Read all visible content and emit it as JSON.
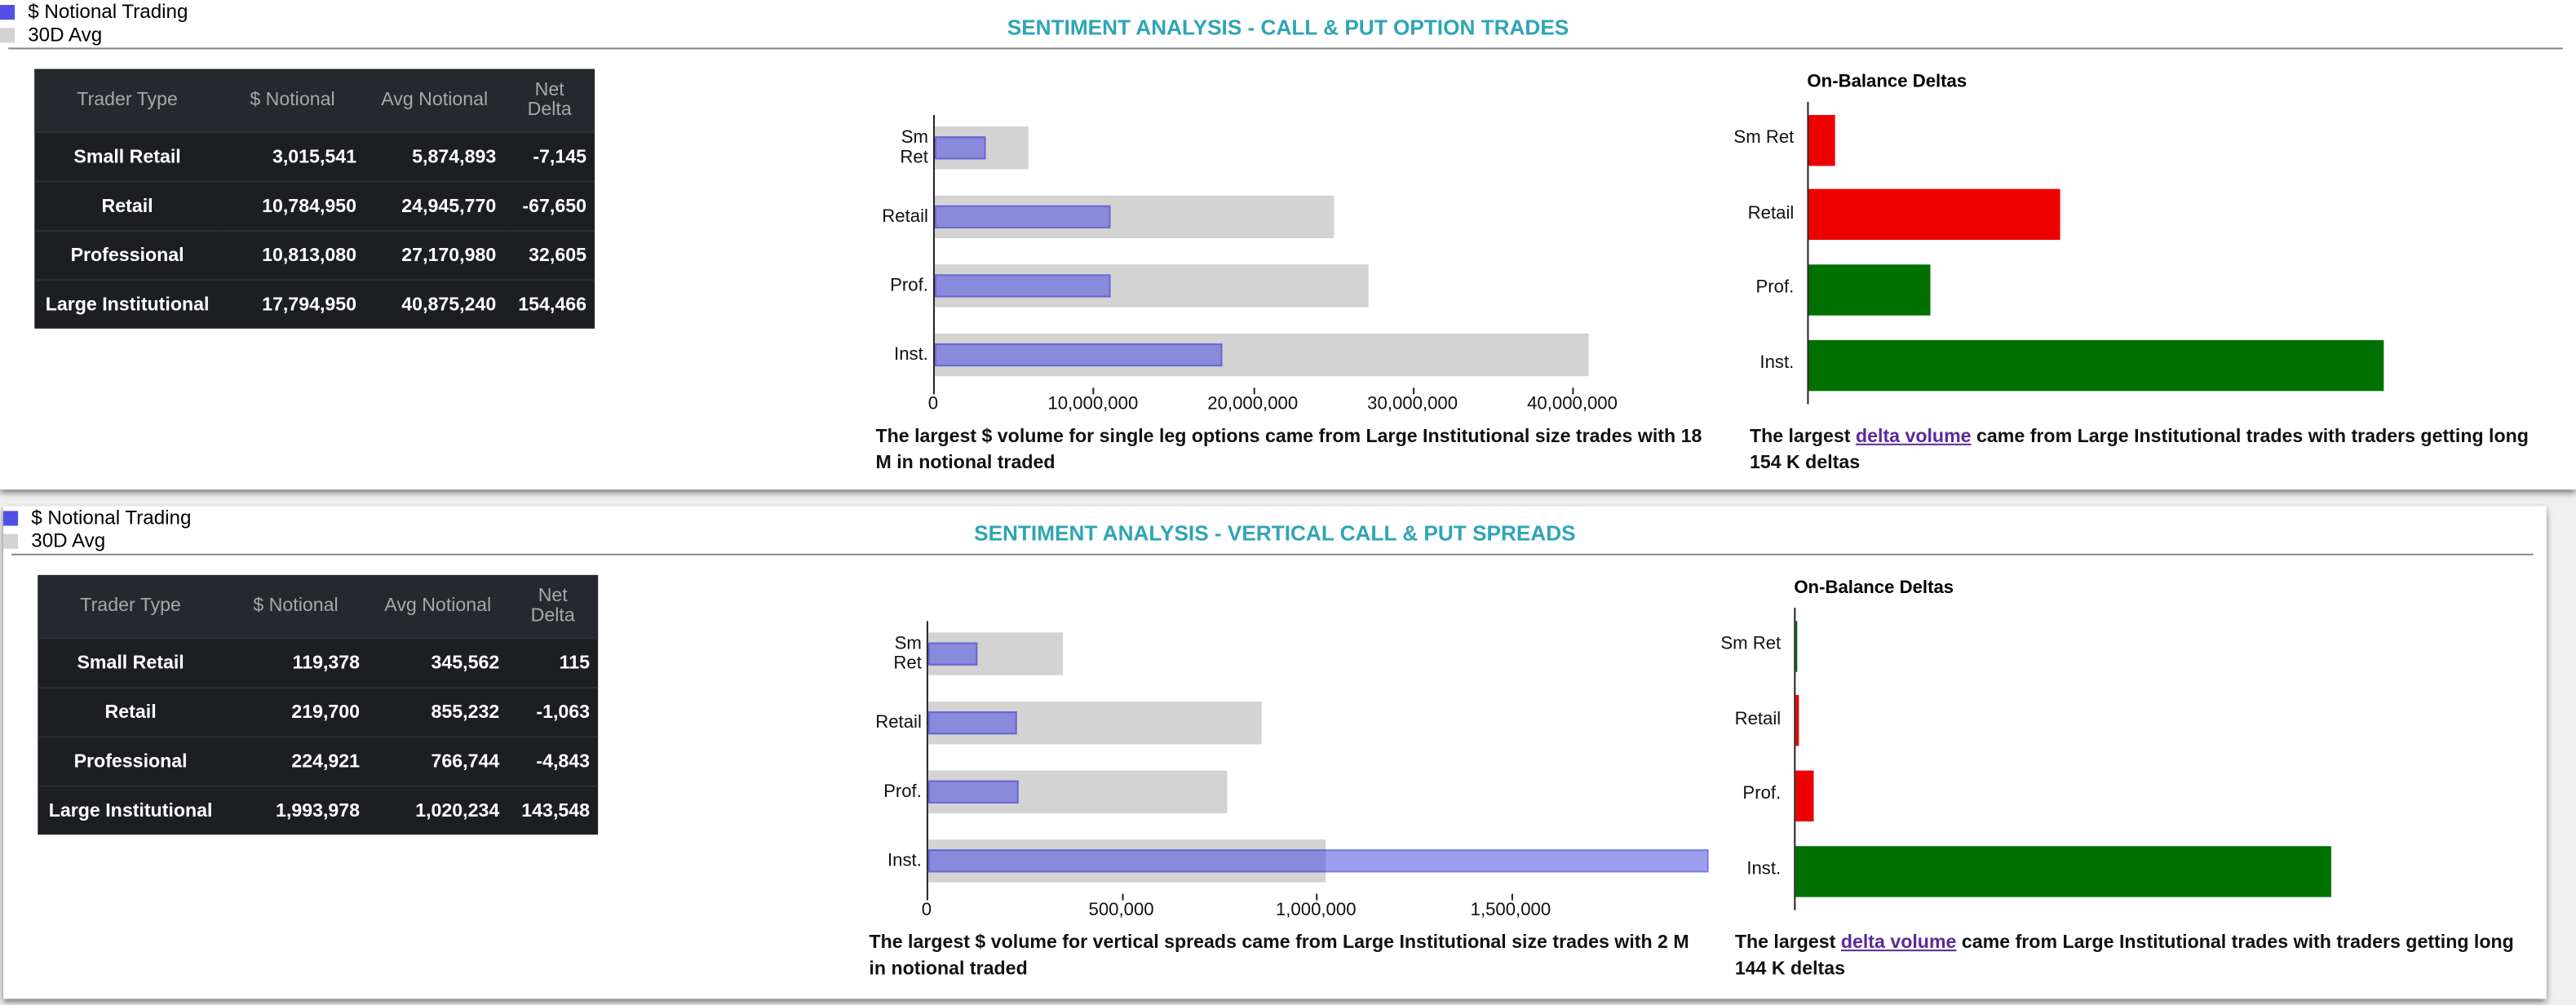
{
  "panels": [
    {
      "title": "SENTIMENT ANALYSIS - CALL & PUT OPTION TRADES",
      "table": {
        "headers": [
          "Trader Type",
          "$ Notional",
          "Avg Notional",
          "Net Delta"
        ],
        "rows": [
          [
            "Small Retail",
            "3,015,541",
            "5,874,893",
            "-7,145"
          ],
          [
            "Retail",
            "10,784,950",
            "24,945,770",
            "-67,650"
          ],
          [
            "Professional",
            "10,813,080",
            "27,170,980",
            "32,605"
          ],
          [
            "Large Institutional",
            "17,794,950",
            "40,875,240",
            "154,466"
          ]
        ]
      },
      "chart_data": [
        {
          "type": "hbar",
          "categories": [
            "Sm Ret",
            "Retail",
            "Prof.",
            "Inst."
          ],
          "series": [
            {
              "name": "$ Notional Trading",
              "color": "#5050e6",
              "values": [
                3015541,
                10784950,
                10813080,
                17794950
              ]
            },
            {
              "name": "30D Avg",
              "color": "#d3d3d3",
              "values": [
                5874893,
                24945770,
                27170980,
                40875240
              ]
            }
          ],
          "xlim": [
            0,
            42000000
          ],
          "xticks": [
            0,
            {
              "value": 10000000,
              "label": "10,000,000"
            },
            {
              "value": 20000000,
              "label": "20,000,000"
            },
            {
              "value": 30000000,
              "label": "30,000,000"
            },
            {
              "value": 40000000,
              "label": "40,000,000"
            }
          ],
          "caption": "The largest $ volume for single leg options came from Large Institutional size trades with 18 M in notional traded"
        },
        {
          "type": "delta",
          "title": "On-Balance Deltas",
          "categories": [
            "Sm Ret",
            "Retail",
            "Prof.",
            "Inst."
          ],
          "values": [
            -7145,
            -67650,
            32605,
            154466
          ],
          "colors": [
            "#ee0000",
            "#ee0000",
            "#007000",
            "#007000"
          ],
          "xlim": [
            0,
            160000
          ],
          "caption_parts": [
            "The largest ",
            "delta volume",
            " came from Large Institutional trades with traders getting long 154 K deltas"
          ]
        }
      ]
    },
    {
      "title": "SENTIMENT ANALYSIS - VERTICAL CALL & PUT SPREADS",
      "table": {
        "headers": [
          "Trader Type",
          "$ Notional",
          "Avg Notional",
          "Net Delta"
        ],
        "rows": [
          [
            "Small Retail",
            "119,378",
            "345,562",
            "115"
          ],
          [
            "Retail",
            "219,700",
            "855,232",
            "-1,063"
          ],
          [
            "Professional",
            "224,921",
            "766,744",
            "-4,843"
          ],
          [
            "Large Institutional",
            "1,993,978",
            "1,020,234",
            "143,548"
          ]
        ]
      },
      "chart_data": [
        {
          "type": "hbar",
          "categories": [
            "Sm Ret",
            "Retail",
            "Prof.",
            "Inst."
          ],
          "series": [
            {
              "name": "$ Notional Trading",
              "color": "#5050e6",
              "values": [
                119378,
                219700,
                224921,
                1993978
              ]
            },
            {
              "name": "30D Avg",
              "color": "#d3d3d3",
              "values": [
                345562,
                855232,
                766744,
                1020234
              ]
            }
          ],
          "xlim": [
            0,
            2000000
          ],
          "xticks": [
            0,
            {
              "value": 500000,
              "label": "500,000"
            },
            {
              "value": 1000000,
              "label": "1,000,000"
            },
            {
              "value": 1500000,
              "label": "1,500,000"
            }
          ],
          "caption": "The largest $ volume for vertical spreads came from Large Institutional size trades with 2 M in notional traded"
        },
        {
          "type": "delta",
          "title": "On-Balance Deltas",
          "categories": [
            "Sm Ret",
            "Retail",
            "Prof.",
            "Inst."
          ],
          "values": [
            115,
            -1063,
            -4843,
            143548
          ],
          "colors": [
            "#007000",
            "#ee0000",
            "#ee0000",
            "#007000"
          ],
          "xlim": [
            0,
            160000
          ],
          "caption_parts": [
            "The largest ",
            "delta volume",
            " came from Large Institutional trades with traders getting long 144 K deltas"
          ]
        }
      ]
    }
  ]
}
